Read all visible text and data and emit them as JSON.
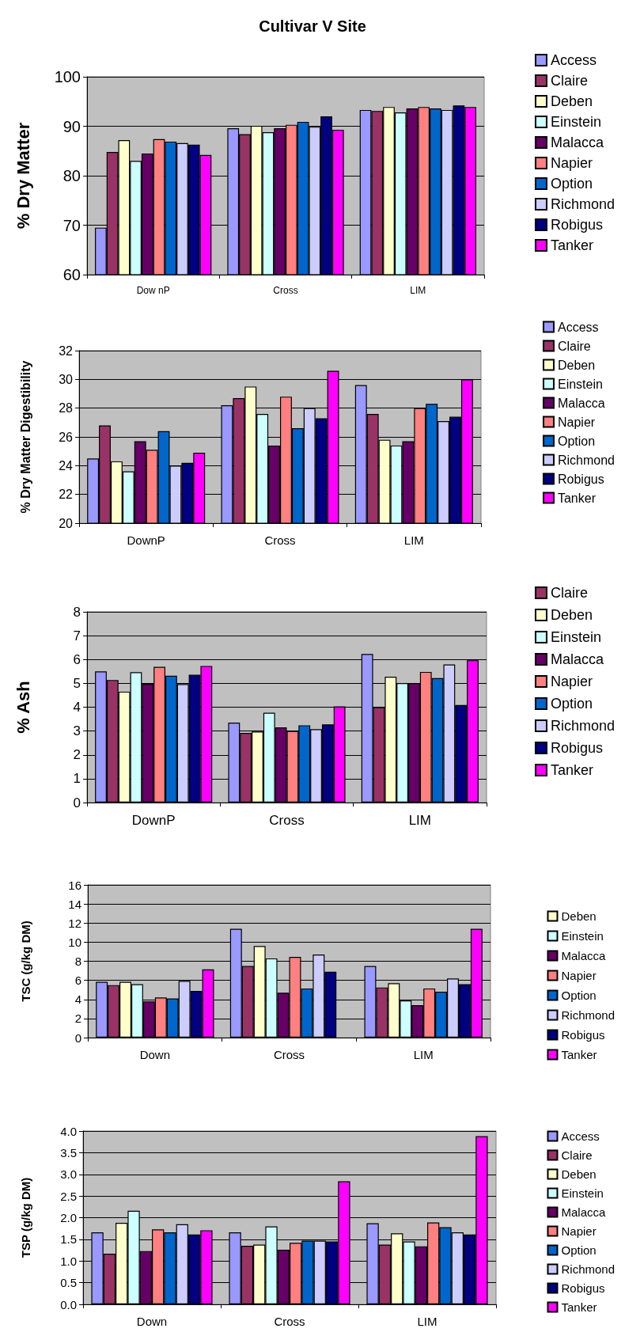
{
  "chart_data": [
    {
      "type": "bar",
      "title": "Cultivar V Site",
      "ylabel": "% Dry Matter",
      "categories": [
        "Dow nP",
        "Cross",
        "LIM"
      ],
      "ylim": [
        60,
        100
      ],
      "yticks": [
        60,
        70,
        80,
        90,
        100
      ],
      "grid": "y",
      "legend": "right",
      "series": [
        {
          "name": "Access",
          "color": "#9999ff",
          "values": [
            69.5,
            89.6,
            93.3
          ]
        },
        {
          "name": "Claire",
          "color": "#993366",
          "values": [
            84.8,
            88.4,
            93.1
          ]
        },
        {
          "name": "Deben",
          "color": "#ffffcc",
          "values": [
            87.2,
            90.1,
            93.9
          ]
        },
        {
          "name": "Einstein",
          "color": "#ccffff",
          "values": [
            83.0,
            88.8,
            92.8
          ]
        },
        {
          "name": "Malacca",
          "color": "#660066",
          "values": [
            84.5,
            89.6,
            93.6
          ]
        },
        {
          "name": "Napier",
          "color": "#ff8080",
          "values": [
            87.4,
            90.3,
            93.9
          ]
        },
        {
          "name": "Option",
          "color": "#0066cc",
          "values": [
            86.9,
            90.9,
            93.6
          ]
        },
        {
          "name": "Richmond",
          "color": "#ccccff",
          "values": [
            86.6,
            89.9,
            93.3
          ]
        },
        {
          "name": "Robigus",
          "color": "#000080",
          "values": [
            86.3,
            92.0,
            94.2
          ]
        },
        {
          "name": "Tanker",
          "color": "#ff00ff",
          "values": [
            84.2,
            89.3,
            93.9
          ]
        }
      ]
    },
    {
      "type": "bar",
      "ylabel": "% Dry Matter Digestibility",
      "categories": [
        "DownP",
        "Cross",
        "LIM"
      ],
      "ylim": [
        20,
        32
      ],
      "yticks": [
        20,
        22,
        24,
        26,
        28,
        30,
        32
      ],
      "grid": "y",
      "legend": "right",
      "series": [
        {
          "name": "Access",
          "color": "#9999ff",
          "values": [
            24.5,
            28.2,
            29.6
          ]
        },
        {
          "name": "Claire",
          "color": "#993366",
          "values": [
            26.8,
            28.7,
            27.6
          ]
        },
        {
          "name": "Deben",
          "color": "#ffffcc",
          "values": [
            24.3,
            29.5,
            25.8
          ]
        },
        {
          "name": "Einstein",
          "color": "#ccffff",
          "values": [
            23.6,
            27.6,
            25.4
          ]
        },
        {
          "name": "Malacca",
          "color": "#660066",
          "values": [
            25.7,
            25.4,
            25.7
          ]
        },
        {
          "name": "Napier",
          "color": "#ff8080",
          "values": [
            25.1,
            28.8,
            28.0
          ]
        },
        {
          "name": "Option",
          "color": "#0066cc",
          "values": [
            26.4,
            26.6,
            28.3
          ]
        },
        {
          "name": "Richmond",
          "color": "#ccccff",
          "values": [
            24.0,
            28.0,
            27.1
          ]
        },
        {
          "name": "Robigus",
          "color": "#000080",
          "values": [
            24.2,
            27.3,
            27.4
          ]
        },
        {
          "name": "Tanker",
          "color": "#ff00ff",
          "values": [
            24.9,
            30.6,
            30.0
          ]
        }
      ]
    },
    {
      "type": "bar",
      "ylabel": "% Ash",
      "categories": [
        "DownP",
        "Cross",
        "LIM"
      ],
      "ylim": [
        0,
        8
      ],
      "yticks": [
        0,
        1,
        2,
        3,
        4,
        5,
        6,
        7,
        8
      ],
      "grid": "y",
      "legend": "right",
      "series": [
        {
          "color": "#9999ff",
          "values": [
            5.5,
            3.35,
            6.23
          ]
        },
        {
          "name": "Claire",
          "color": "#993366",
          "values": [
            5.14,
            2.92,
            4.0
          ]
        },
        {
          "name": "Deben",
          "color": "#ffffcc",
          "values": [
            4.65,
            2.98,
            5.28
          ]
        },
        {
          "name": "Einstein",
          "color": "#ccffff",
          "values": [
            5.47,
            3.77,
            5.01
          ]
        },
        {
          "name": "Malacca",
          "color": "#660066",
          "values": [
            4.98,
            3.15,
            5.01
          ]
        },
        {
          "name": "Napier",
          "color": "#ff8080",
          "values": [
            5.69,
            3.0,
            5.48
          ]
        },
        {
          "name": "Option",
          "color": "#0066cc",
          "values": [
            5.32,
            3.24,
            5.22
          ]
        },
        {
          "name": "Richmond",
          "color": "#ccccff",
          "values": [
            4.97,
            3.08,
            5.79
          ]
        },
        {
          "name": "Robigus",
          "color": "#000080",
          "values": [
            5.36,
            3.28,
            4.09
          ]
        },
        {
          "name": "Tanker",
          "color": "#ff00ff",
          "values": [
            5.73,
            4.03,
            5.97
          ]
        }
      ]
    },
    {
      "type": "bar",
      "ylabel": "TSC (g/kg DM)",
      "categories": [
        "Down",
        "Cross",
        "LIM"
      ],
      "ylim": [
        0,
        16
      ],
      "yticks": [
        0,
        2,
        4,
        6,
        8,
        10,
        12,
        14,
        16
      ],
      "grid": "y",
      "legend": "right",
      "series": [
        {
          "color": "#9999ff",
          "values": [
            5.85,
            11.4,
            7.5
          ]
        },
        {
          "color": "#993366",
          "values": [
            5.5,
            7.5,
            5.25
          ]
        },
        {
          "name": "Deben",
          "color": "#ffffcc",
          "values": [
            5.85,
            9.6,
            5.7
          ]
        },
        {
          "name": "Einstein",
          "color": "#ccffff",
          "values": [
            5.6,
            8.3,
            3.9
          ]
        },
        {
          "name": "Malacca",
          "color": "#660066",
          "values": [
            3.8,
            4.7,
            3.4
          ]
        },
        {
          "name": "Napier",
          "color": "#ff8080",
          "values": [
            4.2,
            8.45,
            5.15
          ]
        },
        {
          "name": "Option",
          "color": "#0066cc",
          "values": [
            4.1,
            5.15,
            4.8
          ]
        },
        {
          "name": "Richmond",
          "color": "#ccccff",
          "values": [
            5.95,
            8.7,
            6.2
          ]
        },
        {
          "name": "Robigus",
          "color": "#000080",
          "values": [
            4.9,
            6.9,
            5.6
          ]
        },
        {
          "name": "Tanker",
          "color": "#ff00ff",
          "values": [
            7.15,
            null,
            11.4
          ]
        }
      ]
    },
    {
      "type": "bar",
      "ylabel": "TSP (g/kg DM)",
      "categories": [
        "Down",
        "Cross",
        "LIM"
      ],
      "ylim": [
        0,
        4
      ],
      "yticks": [
        {
          "value": 0,
          "label": "0.0"
        },
        {
          "value": 0.5,
          "label": "0.5"
        },
        {
          "value": 1,
          "label": "1.0"
        },
        {
          "value": 1.5,
          "label": "1.5"
        },
        {
          "value": 2,
          "label": "2.0"
        },
        {
          "value": 2.5,
          "label": "2.5"
        },
        {
          "value": 3,
          "label": "3.0"
        },
        {
          "value": 3.5,
          "label": "3.5"
        },
        {
          "value": 4,
          "label": "4.0"
        }
      ],
      "grid": "y",
      "legend": "right",
      "series": [
        {
          "name": "Access",
          "color": "#9999ff",
          "values": [
            1.66,
            1.66,
            1.87
          ]
        },
        {
          "name": "Claire",
          "color": "#993366",
          "values": [
            1.17,
            1.35,
            1.38
          ]
        },
        {
          "name": "Deben",
          "color": "#ffffcc",
          "values": [
            1.88,
            1.38,
            1.64
          ]
        },
        {
          "name": "Einstein",
          "color": "#ccffff",
          "values": [
            2.16,
            1.8,
            1.45
          ]
        },
        {
          "name": "Malacca",
          "color": "#660066",
          "values": [
            1.23,
            1.26,
            1.34
          ]
        },
        {
          "name": "Napier",
          "color": "#ff8080",
          "values": [
            1.73,
            1.42,
            1.89
          ]
        },
        {
          "name": "Option",
          "color": "#0066cc",
          "values": [
            1.66,
            1.47,
            1.78
          ]
        },
        {
          "name": "Richmond",
          "color": "#ccccff",
          "values": [
            1.85,
            1.47,
            1.66
          ]
        },
        {
          "name": "Robigus",
          "color": "#000080",
          "values": [
            1.61,
            1.45,
            1.61
          ]
        },
        {
          "name": "Tanker",
          "color": "#ff00ff",
          "values": [
            1.71,
            2.84,
            3.88
          ]
        }
      ]
    }
  ]
}
